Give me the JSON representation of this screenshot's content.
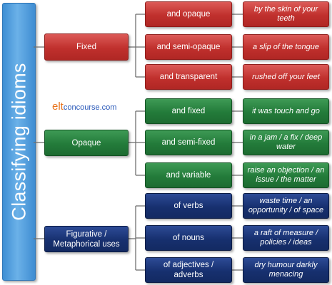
{
  "root": {
    "label": "Classifying idioms",
    "color": "#4a9ee0"
  },
  "colors": {
    "fixed": "#c23a37",
    "opaque": "#2a8440",
    "figurative": "#1a3578",
    "connector": "#6f6f6f"
  },
  "logo": {
    "elt": "elt",
    "rest": "concourse.com"
  },
  "categories": [
    {
      "label": "Fixed",
      "subtypes": [
        {
          "label": "and opaque",
          "example": "by the skin of your teeth"
        },
        {
          "label": "and semi-opaque",
          "example": "a slip of the tongue"
        },
        {
          "label": "and transparent",
          "example": "rushed off your feet"
        }
      ]
    },
    {
      "label": "Opaque",
      "subtypes": [
        {
          "label": "and fixed",
          "example": "it was touch and go"
        },
        {
          "label": "and semi-fixed",
          "example": "in a jam / a fix / deep water"
        },
        {
          "label": "and variable",
          "example": "raise an objection / an issue / the matter"
        }
      ]
    },
    {
      "label": "Figurative / Metaphorical uses",
      "subtypes": [
        {
          "label": "of verbs",
          "example": "waste time / an opportunity / of space"
        },
        {
          "label": "of nouns",
          "example": "a raft of measure / policies / ideas"
        },
        {
          "label": "of adjectives / adverbs",
          "example": "dry humour darkly menacing"
        }
      ]
    }
  ]
}
